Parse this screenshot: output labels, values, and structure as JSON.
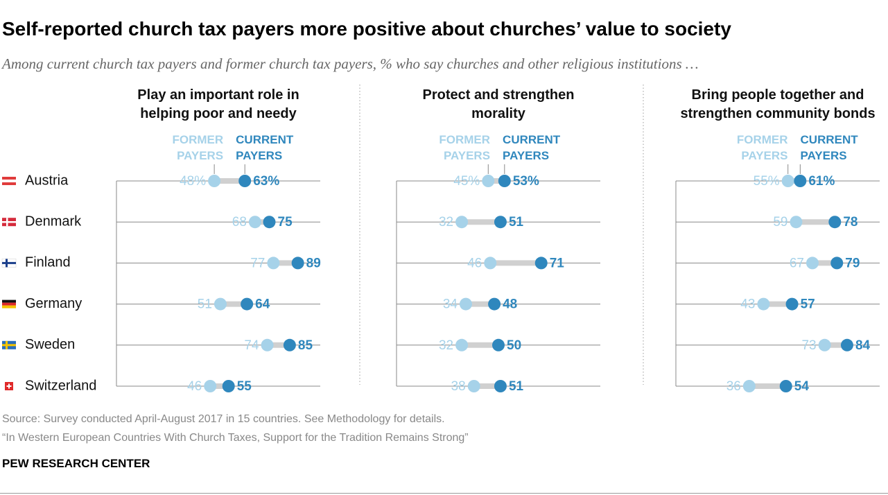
{
  "chart_data": {
    "type": "dot",
    "title": "Self-reported church tax payers more positive about churches’ value to society",
    "subtitle": "Among current church tax payers and former church tax payers, % who say churches and other religious institutions …",
    "source": "Source: Survey conducted April-August 2017 in 15 countries. See Methodology for details.",
    "note": "“In Western European Countries With Church Taxes, Support for the Tradition Remains Strong”",
    "footer": "PEW RESEARCH CENTER",
    "categories": [
      "Austria",
      "Denmark",
      "Finland",
      "Germany",
      "Sweden",
      "Switzerland"
    ],
    "xlim": [
      0,
      100
    ],
    "panels": [
      {
        "title": "Play an important role in helping poor and needy",
        "series": [
          {
            "name": "FORMER PAYERS",
            "color": "#a6d2e9",
            "values": [
              48,
              68,
              77,
              51,
              74,
              46
            ],
            "value_labels": [
              "48%",
              "68",
              "77",
              "51",
              "74",
              "46"
            ]
          },
          {
            "name": "CURRENT PAYERS",
            "color": "#2f87bd",
            "values": [
              63,
              75,
              89,
              64,
              85,
              55
            ],
            "value_labels": [
              "63%",
              "75",
              "89",
              "64",
              "85",
              "55"
            ]
          }
        ]
      },
      {
        "title": "Protect and strengthen morality",
        "series": [
          {
            "name": "FORMER PAYERS",
            "color": "#a6d2e9",
            "values": [
              45,
              32,
              46,
              34,
              32,
              38
            ],
            "value_labels": [
              "45%",
              "32",
              "46",
              "34",
              "32",
              "38"
            ]
          },
          {
            "name": "CURRENT PAYERS",
            "color": "#2f87bd",
            "values": [
              53,
              51,
              71,
              48,
              50,
              51
            ],
            "value_labels": [
              "53%",
              "51",
              "71",
              "48",
              "50",
              "51"
            ]
          }
        ]
      },
      {
        "title": "Bring people together and strengthen community bonds",
        "series": [
          {
            "name": "FORMER PAYERS",
            "color": "#a6d2e9",
            "values": [
              55,
              59,
              67,
              43,
              73,
              36
            ],
            "value_labels": [
              "55%",
              "59",
              "67",
              "43",
              "73",
              "36"
            ]
          },
          {
            "name": "CURRENT PAYERS",
            "color": "#2f87bd",
            "values": [
              61,
              78,
              79,
              57,
              84,
              54
            ],
            "value_labels": [
              "61%",
              "78",
              "79",
              "57",
              "84",
              "54"
            ]
          }
        ]
      }
    ]
  }
}
